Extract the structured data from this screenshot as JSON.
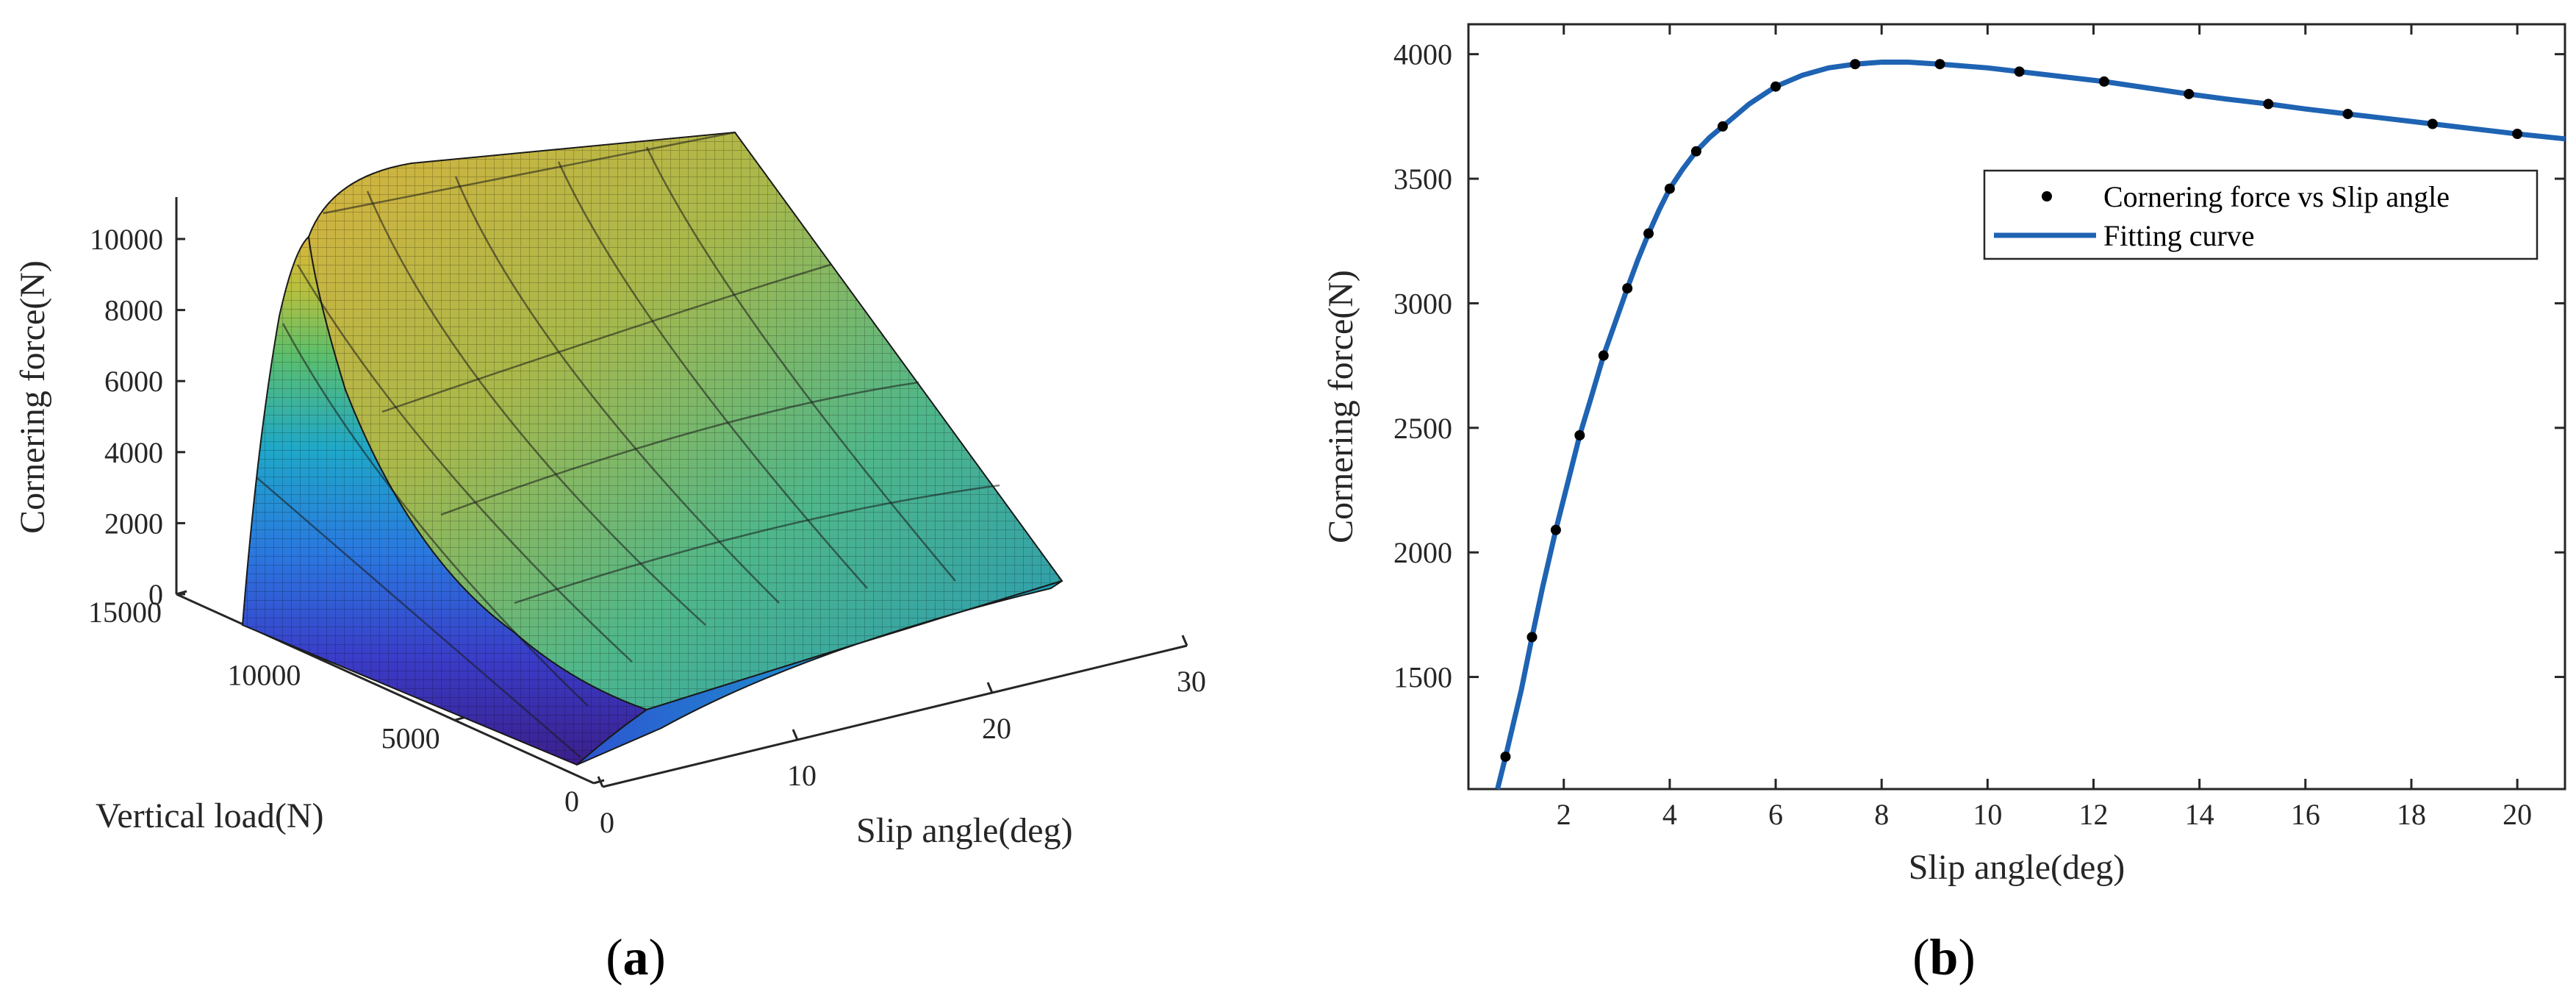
{
  "panels": {
    "a_label": "a",
    "b_label": "b"
  },
  "chart_data": [
    {
      "type": "surface",
      "panel": "a",
      "title": "",
      "xlabel": "Slip angle(deg)",
      "ylabel": "Vertical load(N)",
      "zlabel": "Cornering force(N)",
      "x_ticks": [
        "0",
        "10",
        "20",
        "30"
      ],
      "y_ticks": [
        "0",
        "5000",
        "10000",
        "15000"
      ],
      "z_ticks": [
        "0",
        "2000",
        "4000",
        "6000",
        "8000",
        "10000"
      ],
      "xlim": [
        0,
        30
      ],
      "ylim": [
        0,
        15000
      ],
      "zlim": [
        0,
        11000
      ],
      "colormap": [
        "#3b1f8a",
        "#2c5fd8",
        "#1e9ad6",
        "#22b8a6",
        "#5fbf6a",
        "#a9c24a",
        "#d4b43a",
        "#e8c24a"
      ],
      "grid": false
    },
    {
      "type": "line",
      "panel": "b",
      "title": "",
      "xlabel": "Slip angle(deg)",
      "ylabel": "Cornering force(N)",
      "x_ticks": [
        "2",
        "4",
        "6",
        "8",
        "10",
        "12",
        "14",
        "16",
        "18",
        "20"
      ],
      "y_ticks": [
        "1500",
        "2000",
        "2500",
        "3000",
        "3500",
        "4000"
      ],
      "xlim": [
        0.2,
        20.9
      ],
      "ylim": [
        1050,
        4120
      ],
      "grid": false,
      "legend_placement": "upper-right",
      "series": [
        {
          "name": "Cornering force vs Slip angle",
          "style": "markers",
          "color": "#000000",
          "x": [
            0.9,
            1.4,
            1.85,
            2.3,
            2.75,
            3.2,
            3.6,
            4.0,
            4.5,
            5.0,
            6.0,
            7.5,
            9.1,
            10.6,
            12.2,
            13.8,
            15.3,
            16.8,
            18.4,
            20.0
          ],
          "y": [
            1180,
            1660,
            2090,
            2470,
            2790,
            3060,
            3280,
            3460,
            3610,
            3710,
            3870,
            3960,
            3960,
            3930,
            3890,
            3840,
            3800,
            3760,
            3720,
            3680
          ]
        },
        {
          "name": "Fitting curve",
          "style": "line",
          "color": "#1f63b3",
          "x": [
            0.75,
            0.9,
            1.2,
            1.4,
            1.6,
            1.85,
            2.1,
            2.3,
            2.5,
            2.75,
            3.0,
            3.2,
            3.4,
            3.6,
            3.8,
            4.0,
            4.25,
            4.5,
            4.75,
            5.0,
            5.5,
            6.0,
            6.5,
            7.0,
            7.5,
            8.0,
            8.5,
            9.1,
            10.0,
            10.6,
            11.4,
            12.2,
            13.0,
            13.8,
            14.5,
            15.3,
            16.0,
            16.8,
            17.6,
            18.4,
            19.2,
            20.0,
            20.9
          ],
          "y": [
            1050,
            1180,
            1450,
            1660,
            1860,
            2090,
            2300,
            2470,
            2610,
            2790,
            2940,
            3060,
            3175,
            3280,
            3375,
            3460,
            3540,
            3610,
            3665,
            3710,
            3800,
            3870,
            3915,
            3945,
            3960,
            3968,
            3968,
            3960,
            3945,
            3930,
            3910,
            3890,
            3865,
            3840,
            3820,
            3800,
            3780,
            3760,
            3740,
            3720,
            3700,
            3680,
            3660
          ]
        }
      ]
    }
  ]
}
